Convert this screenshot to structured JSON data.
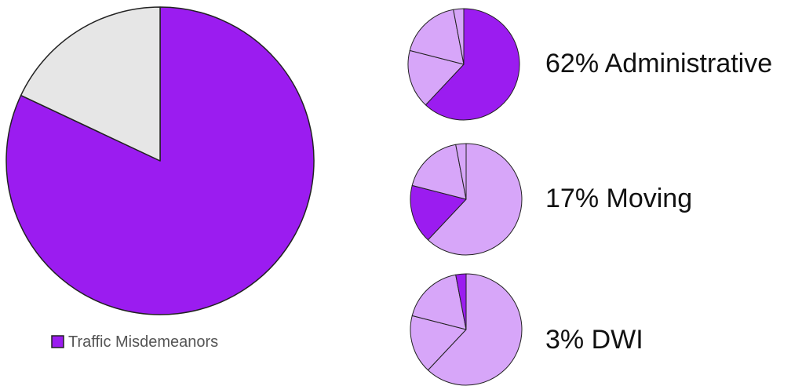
{
  "colors": {
    "primary": "#9B1CF0",
    "light": "#D7A6F9",
    "remainder": "#E6E6E6",
    "outline": "#222222",
    "text": "#111111",
    "legend_text": "#555555"
  },
  "chart_data": [
    {
      "type": "pie",
      "legend": {
        "placement": "bottom",
        "entries": [
          "Traffic Misdemeanors"
        ]
      },
      "slices": [
        {
          "name": "Traffic Misdemeanors",
          "value": 82,
          "color": "#9B1CF0"
        },
        {
          "name": "",
          "value": 18,
          "color": "#E6E6E6"
        }
      ]
    },
    {
      "type": "pie",
      "label": "62% Administrative",
      "highlight": "Administrative",
      "slices": [
        {
          "name": "Administrative",
          "value": 62
        },
        {
          "name": "Moving",
          "value": 17
        },
        {
          "name": "",
          "value": 18
        },
        {
          "name": "DWI",
          "value": 3
        }
      ]
    },
    {
      "type": "pie",
      "label": "17% Moving",
      "highlight": "Moving",
      "slices": [
        {
          "name": "Administrative",
          "value": 62
        },
        {
          "name": "Moving",
          "value": 17
        },
        {
          "name": "",
          "value": 18
        },
        {
          "name": "DWI",
          "value": 3
        }
      ]
    },
    {
      "type": "pie",
      "label": "3% DWI",
      "highlight": "DWI",
      "slices": [
        {
          "name": "Administrative",
          "value": 62
        },
        {
          "name": "Moving",
          "value": 17
        },
        {
          "name": "",
          "value": 18
        },
        {
          "name": "DWI",
          "value": 3
        }
      ]
    }
  ]
}
